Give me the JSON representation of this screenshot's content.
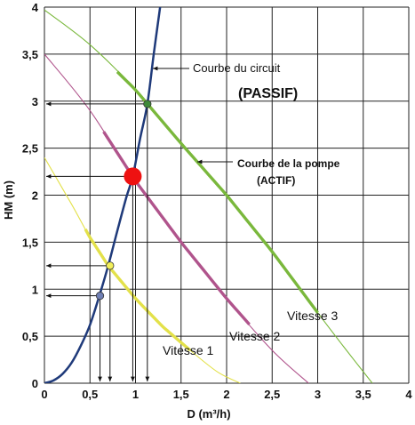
{
  "chart_data": {
    "type": "line",
    "xlabel": "D (m³/h)",
    "ylabel": "HM (m)",
    "xlim": [
      0,
      4
    ],
    "ylim": [
      0,
      4
    ],
    "x_ticks": [
      "0",
      "0,5",
      "1",
      "1,5",
      "2",
      "2,5",
      "3",
      "3,5",
      "4"
    ],
    "y_ticks": [
      "0",
      "0,5",
      "1",
      "1,5",
      "2",
      "2,5",
      "3",
      "3,5",
      "4"
    ],
    "grid": true,
    "series": [
      {
        "name": "Courbe du circuit",
        "color": "#1f3a7a",
        "x": [
          0,
          0.1,
          0.2,
          0.3,
          0.4,
          0.5,
          0.6,
          0.7,
          0.8,
          0.9,
          0.97,
          1.05,
          1.13,
          1.2,
          1.27
        ],
        "y": [
          0,
          0.03,
          0.1,
          0.22,
          0.4,
          0.62,
          0.92,
          1.25,
          1.62,
          1.98,
          2.2,
          2.6,
          2.97,
          3.5,
          4.0
        ]
      },
      {
        "name": "Vitesse 3",
        "color": "#7ab83c",
        "x": [
          0,
          0.5,
          1.0,
          1.5,
          2.0,
          2.5,
          3.0,
          3.3,
          3.6
        ],
        "y": [
          3.97,
          3.6,
          3.12,
          2.55,
          2.0,
          1.4,
          0.75,
          0.37,
          0
        ]
      },
      {
        "name": "Vitesse 2",
        "color": "#b0548c",
        "x": [
          0,
          0.5,
          1.0,
          1.5,
          2.0,
          2.5,
          2.9
        ],
        "y": [
          3.5,
          2.9,
          2.15,
          1.5,
          0.9,
          0.35,
          0
        ]
      },
      {
        "name": "Vitesse 1",
        "color": "#e3e14a",
        "x": [
          0,
          0.3,
          0.5,
          0.7,
          1.0,
          1.3,
          1.6,
          1.9,
          2.15
        ],
        "y": [
          2.4,
          1.9,
          1.55,
          1.25,
          0.9,
          0.6,
          0.35,
          0.12,
          0
        ]
      }
    ],
    "highlight_segments": [
      {
        "series": "Vitesse 3",
        "x_range": [
          0.8,
          3.0
        ]
      },
      {
        "series": "Vitesse 2",
        "x_range": [
          0.65,
          2.25
        ]
      },
      {
        "series": "Vitesse 1",
        "x_range": [
          0.45,
          1.6
        ]
      }
    ],
    "operating_points": [
      {
        "x": 1.13,
        "y": 2.97,
        "color": "#3f8a3a",
        "size": "small"
      },
      {
        "x": 0.97,
        "y": 2.2,
        "color": "#ee1111",
        "size": "large"
      },
      {
        "x": 0.72,
        "y": 1.25,
        "color": "#f2ef5a",
        "size": "small"
      },
      {
        "x": 0.61,
        "y": 0.93,
        "color": "#6f7fb4",
        "size": "small"
      }
    ],
    "annotations": {
      "circuit_label": "Courbe du circuit",
      "circuit_sub": "(PASSIF)",
      "pump_label": "Courbe de la pompe",
      "pump_sub": "(ACTIF)",
      "speed3": "Vitesse 3",
      "speed2": "Vitesse 2",
      "speed1": "Vitesse 1"
    }
  }
}
